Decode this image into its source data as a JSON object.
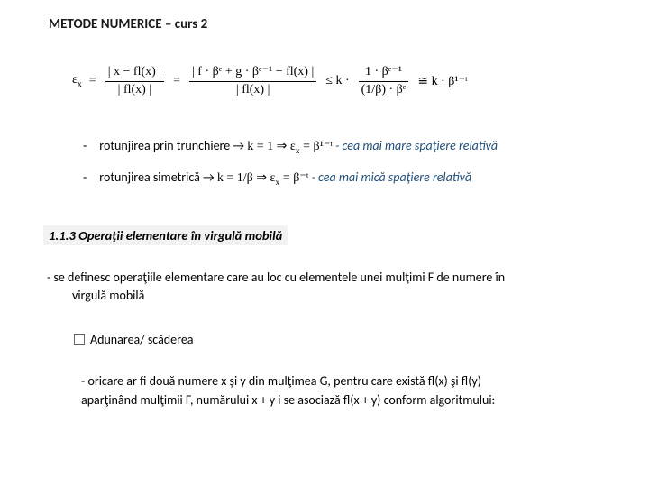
{
  "header": {
    "title": "METODE  NUMERICE – curs 2"
  },
  "formula": {
    "eps": "ε",
    "subx": "ₓ",
    "eq": " = ",
    "n1": "| x − fl(x) |",
    "d1": "| fl(x) |",
    "n2": "| f · βᵉ + g · βᵉ⁻¹ − fl(x) |",
    "d2": "| fl(x) |",
    "le": " ≤ k · ",
    "n3": "1 · βᵉ⁻¹",
    "d3": "(1/β) · βᵉ",
    "approx": " ≅ k · β¹⁻ᵗ"
  },
  "bullets": {
    "b1_text": "rotunjirea prin trunchiere → ",
    "b1_math": "k = 1   ⇒   ε",
    "b1_math2": " = β¹⁻ᵗ",
    "b1_note": " - cea mai mare spaţiere relativă",
    "b2_text": "rotunjirea simetrică → ",
    "b2_math": "k = 1/β        ⇒   ε",
    "b2_math2": " = β⁻ᵗ",
    "b2_note": " - cea mai mică spaţiere relativă",
    "epsx_sub": "x"
  },
  "section": {
    "heading": "1.1.3  Operaţii elementare în virgulă mobilă"
  },
  "para1": {
    "line1": "- se definesc operaţiile elementare care au loc cu elementele unei mulţimi F de numere în",
    "line2": "virgulă mobilă"
  },
  "subop": {
    "label": "Adunarea/ scăderea"
  },
  "para2": {
    "line1": "- oricare ar fi două numere x şi y din mulţimea G, pentru care există fl(x) şi fl(y)",
    "line2": "  aparţinând mulţimii F, numărului x + y i se asociază fl(x + y) conform algoritmului:"
  },
  "style": {
    "page_bg": "#ffffff",
    "text_color": "#000000",
    "note_color": "#1f4e79",
    "header_fontsize": 15,
    "body_fontsize": 14,
    "font_family": "Calibri, Arial, sans-serif",
    "math_family": "Cambria Math, Times New Roman, serif"
  }
}
